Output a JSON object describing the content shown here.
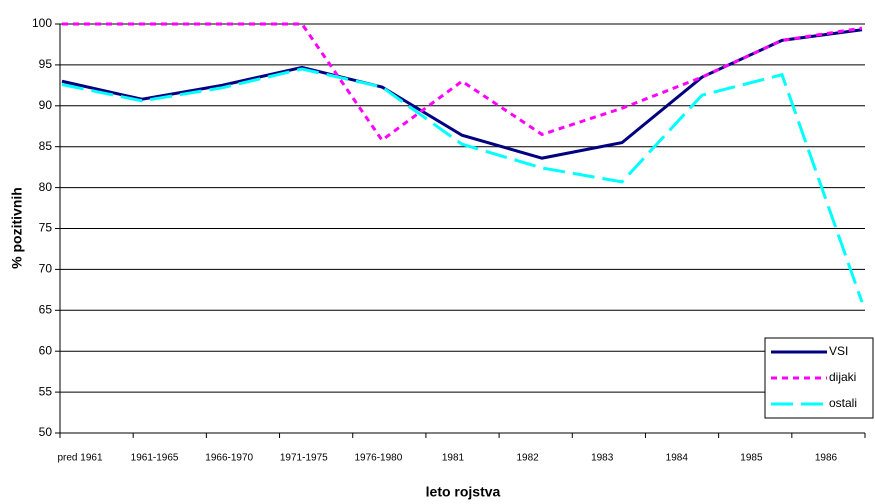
{
  "chart_data": {
    "type": "line",
    "ylabel": "% pozitivnih",
    "xlabel": "leto rojstva",
    "categories": [
      "pred 1961",
      "1961-1965",
      "1966-1970",
      "1971-1975",
      "1976-1980",
      "1981",
      "1982",
      "1983",
      "1984",
      "1985",
      "1986"
    ],
    "series": [
      {
        "name": "VSI",
        "color": "#000080",
        "dash": "solid",
        "values": [
          93.0,
          90.8,
          92.5,
          94.7,
          92.3,
          86.4,
          83.6,
          85.5,
          93.5,
          98.0,
          99.3
        ]
      },
      {
        "name": "dijaki",
        "color": "#ff00ff",
        "dash": "short",
        "values": [
          100,
          100,
          100,
          100,
          85.8,
          93.0,
          86.5,
          89.7,
          93.5,
          98.0,
          99.5
        ]
      },
      {
        "name": "ostali",
        "color": "#00ffff",
        "dash": "long",
        "values": [
          92.6,
          90.6,
          92.2,
          94.5,
          92.3,
          85.3,
          82.4,
          80.7,
          91.3,
          93.8,
          66.0
        ]
      }
    ],
    "ylim": [
      50,
      100
    ],
    "yticks": [
      50,
      55,
      60,
      65,
      70,
      75,
      80,
      85,
      90,
      95,
      100
    ],
    "grid": true,
    "legend": "lower right"
  }
}
